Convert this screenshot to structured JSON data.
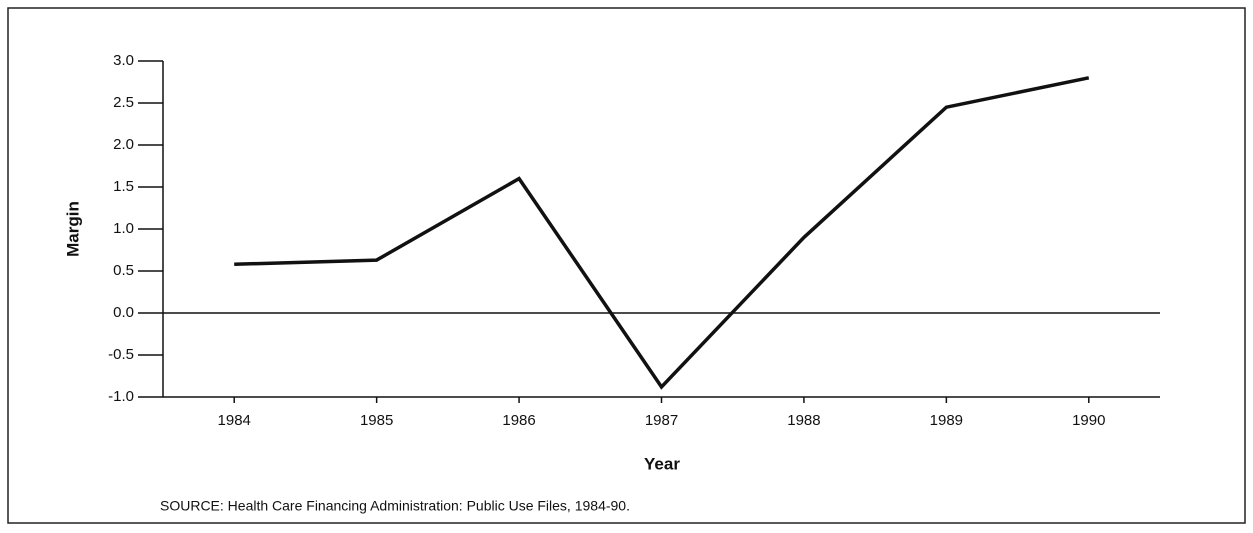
{
  "chart_data": {
    "type": "line",
    "y_label": "Margin",
    "x_label": "Year",
    "source": "SOURCE: Health Care Financing Administration: Public Use Files, 1984-90.",
    "categories": [
      "1984",
      "1985",
      "1986",
      "1987",
      "1988",
      "1989",
      "1990"
    ],
    "series": [
      {
        "name": "Margin",
        "color": "#111111",
        "values": [
          0.58,
          0.63,
          1.6,
          -0.88,
          0.9,
          2.45,
          2.8
        ]
      }
    ],
    "ylim": [
      -1,
      3
    ],
    "yticks": [
      {
        "value": -1,
        "label": "-1.0"
      },
      {
        "value": -0.5,
        "label": "-0.5"
      },
      {
        "value": 0,
        "label": "0.0"
      },
      {
        "value": 0.5,
        "label": "0.5"
      },
      {
        "value": 1,
        "label": "1.0"
      },
      {
        "value": 1.5,
        "label": "1.5"
      },
      {
        "value": 2,
        "label": "2.0"
      },
      {
        "value": 2.5,
        "label": "2.5"
      },
      {
        "value": 3,
        "label": "3.0"
      }
    ],
    "reference_line": 0
  }
}
